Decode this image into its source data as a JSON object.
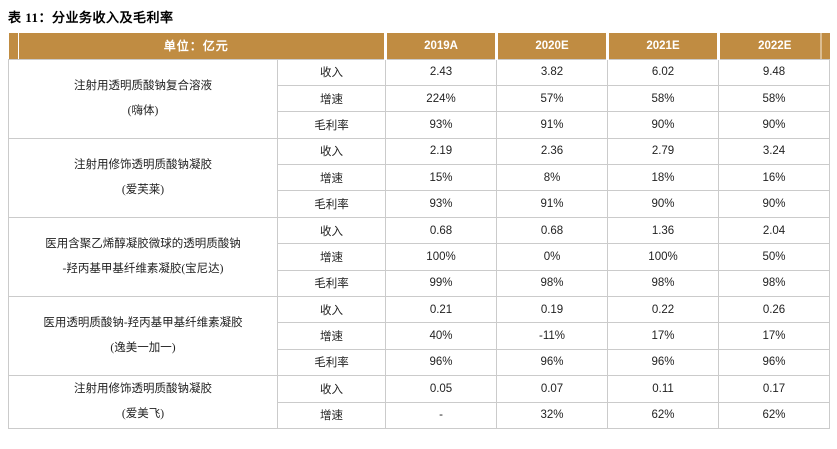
{
  "title": "表 11：分业务收入及毛利率",
  "table": {
    "unit_header": "单位：亿元",
    "year_columns": [
      "2019A",
      "2020E",
      "2021E",
      "2022E"
    ],
    "segments": [
      {
        "name_line1": "注射用透明质酸钠复合溶液",
        "name_line2": "(嗨体)",
        "rows": [
          {
            "metric": "收入",
            "values": [
              "2.43",
              "3.82",
              "6.02",
              "9.48"
            ]
          },
          {
            "metric": "增速",
            "values": [
              "224%",
              "57%",
              "58%",
              "58%"
            ]
          },
          {
            "metric": "毛利率",
            "values": [
              "93%",
              "91%",
              "90%",
              "90%"
            ]
          }
        ]
      },
      {
        "name_line1": "注射用修饰透明质酸钠凝胶",
        "name_line2": "(爱芙莱)",
        "rows": [
          {
            "metric": "收入",
            "values": [
              "2.19",
              "2.36",
              "2.79",
              "3.24"
            ]
          },
          {
            "metric": "增速",
            "values": [
              "15%",
              "8%",
              "18%",
              "16%"
            ]
          },
          {
            "metric": "毛利率",
            "values": [
              "93%",
              "91%",
              "90%",
              "90%"
            ]
          }
        ]
      },
      {
        "name_line1": "医用含聚乙烯醇凝胶微球的透明质酸钠",
        "name_line2": "-羟丙基甲基纤维素凝胶(宝尼达)",
        "rows": [
          {
            "metric": "收入",
            "values": [
              "0.68",
              "0.68",
              "1.36",
              "2.04"
            ]
          },
          {
            "metric": "增速",
            "values": [
              "100%",
              "0%",
              "100%",
              "50%"
            ]
          },
          {
            "metric": "毛利率",
            "values": [
              "99%",
              "98%",
              "98%",
              "98%"
            ]
          }
        ]
      },
      {
        "name_line1": "医用透明质酸钠-羟丙基甲基纤维素凝胶",
        "name_line2": "(逸美一加一)",
        "rows": [
          {
            "metric": "收入",
            "values": [
              "0.21",
              "0.19",
              "0.22",
              "0.26"
            ]
          },
          {
            "metric": "增速",
            "values": [
              "40%",
              "-11%",
              "17%",
              "17%"
            ]
          },
          {
            "metric": "毛利率",
            "values": [
              "96%",
              "96%",
              "96%",
              "96%"
            ]
          }
        ]
      },
      {
        "name_line1": "注射用修饰透明质酸钠凝胶",
        "name_line2": "(爱美飞)",
        "rows": [
          {
            "metric": "收入",
            "values": [
              "0.05",
              "0.07",
              "0.11",
              "0.17"
            ]
          },
          {
            "metric": "增速",
            "values": [
              "-",
              "32%",
              "62%",
              "62%"
            ]
          }
        ]
      }
    ]
  },
  "colors": {
    "header_bg": "#C08C42",
    "header_text": "#FFFFFF",
    "border": "#CBCBCB",
    "text": "#1A1A1A"
  }
}
